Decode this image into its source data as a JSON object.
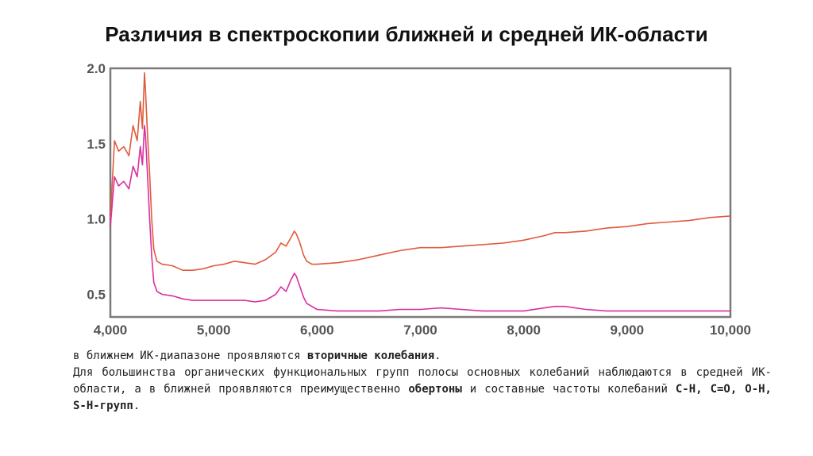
{
  "title": "Различия в спектроскопии ближней и средней ИК-области",
  "chart_data": {
    "type": "line",
    "title": "",
    "xlabel": "",
    "ylabel": "",
    "xlim": [
      4000,
      10000
    ],
    "ylim": [
      0.35,
      2.0
    ],
    "xticks": [
      4000,
      5000,
      6000,
      7000,
      8000,
      9000,
      10000
    ],
    "xtick_labels": [
      "4,000",
      "5,000",
      "6,000",
      "7,000",
      "8,000",
      "9,000",
      "10,000"
    ],
    "yticks": [
      0.5,
      1.0,
      1.5,
      2.0
    ],
    "ytick_labels": [
      "0.5",
      "1.0",
      "1.5",
      "2.0"
    ],
    "grid": false,
    "series": [
      {
        "color": "#e05a3c",
        "x": [
          4000,
          4040,
          4080,
          4130,
          4180,
          4220,
          4260,
          4290,
          4310,
          4330,
          4340,
          4360,
          4380,
          4400,
          4420,
          4450,
          4500,
          4600,
          4700,
          4800,
          4900,
          5000,
          5100,
          5200,
          5300,
          5400,
          5500,
          5600,
          5650,
          5700,
          5750,
          5780,
          5800,
          5830,
          5870,
          5900,
          5950,
          6000,
          6200,
          6400,
          6600,
          6800,
          7000,
          7200,
          7400,
          7600,
          7800,
          8000,
          8200,
          8300,
          8400,
          8600,
          8800,
          9000,
          9200,
          9400,
          9600,
          9800,
          10000
        ],
        "y": [
          1.0,
          1.52,
          1.45,
          1.48,
          1.42,
          1.62,
          1.52,
          1.78,
          1.6,
          1.97,
          1.85,
          1.55,
          1.3,
          1.0,
          0.8,
          0.72,
          0.7,
          0.69,
          0.66,
          0.66,
          0.67,
          0.69,
          0.7,
          0.72,
          0.71,
          0.7,
          0.73,
          0.78,
          0.84,
          0.82,
          0.88,
          0.92,
          0.9,
          0.85,
          0.76,
          0.72,
          0.7,
          0.7,
          0.71,
          0.73,
          0.76,
          0.79,
          0.81,
          0.81,
          0.82,
          0.83,
          0.84,
          0.86,
          0.89,
          0.91,
          0.91,
          0.92,
          0.94,
          0.95,
          0.97,
          0.98,
          0.99,
          1.01,
          1.02
        ]
      },
      {
        "color": "#d92f9f",
        "x": [
          4000,
          4040,
          4080,
          4130,
          4180,
          4220,
          4260,
          4290,
          4310,
          4330,
          4340,
          4360,
          4380,
          4400,
          4420,
          4450,
          4500,
          4600,
          4700,
          4800,
          4900,
          5000,
          5100,
          5200,
          5300,
          5400,
          5500,
          5600,
          5650,
          5700,
          5750,
          5780,
          5800,
          5830,
          5870,
          5900,
          5950,
          6000,
          6200,
          6400,
          6600,
          6800,
          7000,
          7200,
          7400,
          7600,
          7800,
          8000,
          8200,
          8300,
          8400,
          8600,
          8800,
          9000,
          9200,
          9400,
          9600,
          9800,
          10000
        ],
        "y": [
          0.95,
          1.28,
          1.22,
          1.25,
          1.2,
          1.35,
          1.28,
          1.48,
          1.36,
          1.62,
          1.55,
          1.28,
          1.0,
          0.75,
          0.58,
          0.52,
          0.5,
          0.49,
          0.47,
          0.46,
          0.46,
          0.46,
          0.46,
          0.46,
          0.46,
          0.45,
          0.46,
          0.5,
          0.55,
          0.52,
          0.6,
          0.64,
          0.62,
          0.56,
          0.48,
          0.44,
          0.42,
          0.4,
          0.39,
          0.39,
          0.39,
          0.4,
          0.4,
          0.41,
          0.4,
          0.39,
          0.39,
          0.39,
          0.41,
          0.42,
          0.42,
          0.4,
          0.39,
          0.39,
          0.39,
          0.39,
          0.39,
          0.39,
          0.39
        ]
      }
    ]
  },
  "caption": {
    "line1_prefix": "в ближнем ИК-диапазоне проявляются ",
    "line1_bold": "вторичные колебания",
    "line1_suffix": ".",
    "para_text": "Для большинства органических функциональных групп полосы основных колебаний наблюдаются в средней ИК-области, а в ближней проявляются преимущественно ",
    "para_bold1": "обертоны",
    "para_mid": " и составные частоты колебаний ",
    "para_bold2": "С-Н, С=О, О-Н, S-Н-групп",
    "para_end": "."
  }
}
